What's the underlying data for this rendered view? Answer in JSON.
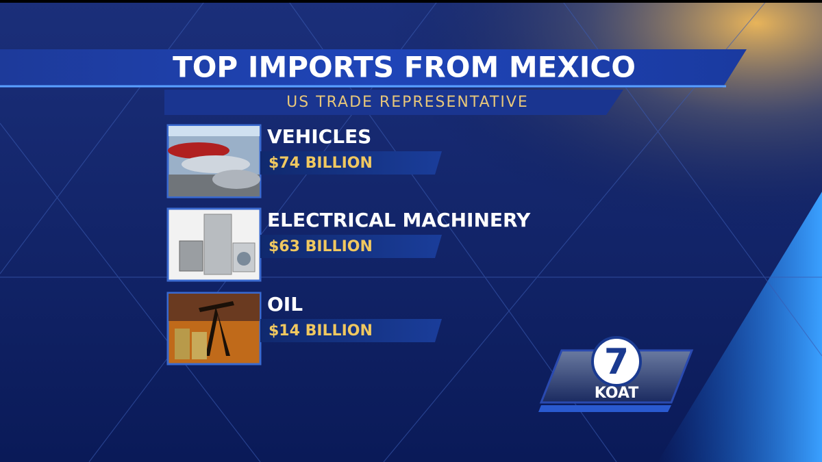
{
  "header": {
    "title": "TOP IMPORTS FROM MEXICO",
    "subtitle": "US TRADE REPRESENTATIVE"
  },
  "items": [
    {
      "label": "VEHICLES",
      "value": "$74 BILLION"
    },
    {
      "label": "ELECTRICAL MACHINERY",
      "value": "$63 BILLION"
    },
    {
      "label": "OIL",
      "value": "$14 BILLION"
    }
  ],
  "logo": {
    "number": "7",
    "station": "KOAT"
  }
}
